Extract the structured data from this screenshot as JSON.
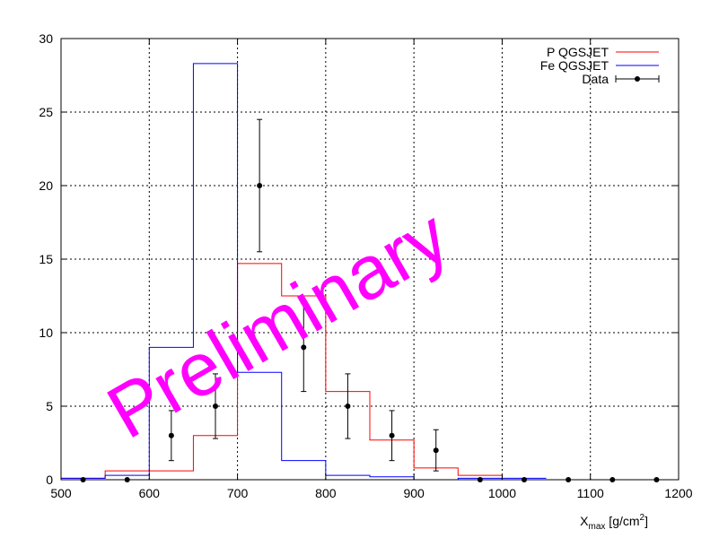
{
  "chart_data": {
    "type": "histogram",
    "title": "",
    "xlabel": {
      "main": "X",
      "sub": "max",
      "unit_pre": " [g/cm",
      "unit_sup": "2",
      "unit_post": "]"
    },
    "ylabel": "",
    "xlim": [
      500,
      1200
    ],
    "ylim": [
      0,
      30
    ],
    "x_ticks": [
      500,
      600,
      700,
      800,
      900,
      1000,
      1100,
      1200
    ],
    "y_ticks": [
      0,
      5,
      10,
      15,
      20,
      25,
      30
    ],
    "grid": true,
    "legend_position": "top-right",
    "bin_edges": [
      500,
      550,
      600,
      650,
      700,
      750,
      800,
      850,
      900,
      950,
      1000,
      1050
    ],
    "series": [
      {
        "name": "P QGSJET",
        "kind": "step",
        "color": "#ff0000",
        "values": [
          0.1,
          0.6,
          0.6,
          3.0,
          14.7,
          12.5,
          6.0,
          2.7,
          0.8,
          0.3,
          0.0
        ]
      },
      {
        "name": "Fe QGSJET",
        "kind": "step",
        "color": "#0000ff",
        "values": [
          0.1,
          0.3,
          9.0,
          28.3,
          7.3,
          1.3,
          0.3,
          0.2,
          0.0,
          0.1,
          0.1
        ]
      },
      {
        "name": "Data",
        "kind": "errorbar",
        "color": "#000000",
        "x": [
          525,
          575,
          625,
          675,
          725,
          775,
          825,
          875,
          925,
          975,
          1025,
          1075,
          1125,
          1175
        ],
        "y": [
          0,
          0,
          3,
          5,
          20,
          9,
          5,
          3,
          2,
          0,
          0,
          0,
          0,
          0
        ],
        "yerr": [
          0,
          0,
          1.7,
          2.2,
          4.5,
          3.0,
          2.2,
          1.7,
          1.4,
          0,
          0,
          0,
          0,
          0
        ]
      }
    ],
    "watermark": "Preliminary"
  }
}
